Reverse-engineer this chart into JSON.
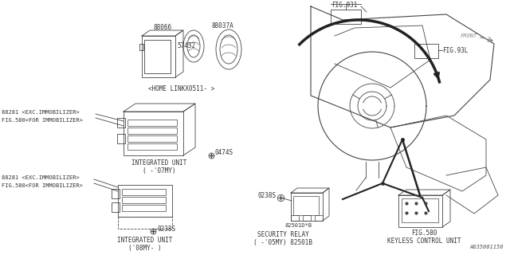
{
  "bg_color": "#ffffff",
  "diagram_id": "A835001150",
  "line_color": "#444444",
  "text_color": "#333333",
  "fig931_label": "FIG.931",
  "fig93l_label": "FIG.93L",
  "fig580_label": "FIG.580",
  "front_label": "FRONT",
  "home_link_label": "<HOME LINKX0511- >",
  "part_88066": "88066",
  "part_57432": "57432",
  "part_88037A": "88037A",
  "part_88281_1": "88281 <EXC.IMMOBILIZER>",
  "part_88281_1b": "FIG.580<FOR IMMOBILIZER>",
  "part_88281_2": "88281 <EXC.IMMOBILIZER>",
  "part_88281_2b": "FIG.580<FOR IMMOBILIZER>",
  "integrated_07": "INTEGRATED UNIT",
  "integrated_07b": "( -'07MY)",
  "integrated_08": "INTEGRATED UNIT",
  "integrated_08b": "('08MY- )",
  "part_0474S": "0474S",
  "part_0238S_1": "0238S",
  "part_0238S_2": "0238S",
  "part_82501DB": "82501D*B",
  "security_relay": "SECURITY RELAY",
  "security_relay_b": "( -'05MY) 82501B",
  "keyless_label": "KEYLESS CONTROL UNIT"
}
